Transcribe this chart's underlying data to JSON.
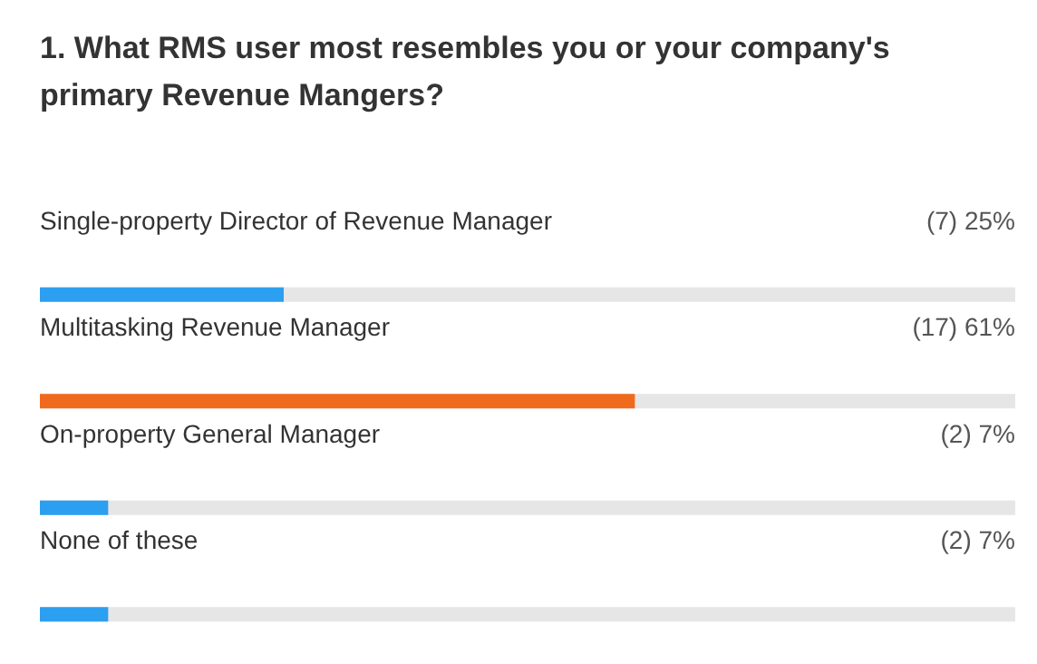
{
  "chart_data": {
    "type": "bar",
    "orientation": "horizontal",
    "title": "1. What RMS user most resembles you or your company's primary Revenue Mangers?",
    "categories": [
      "Single-property Director of Revenue Manager",
      "Multitasking Revenue Manager",
      "On-property General Manager",
      "None of these"
    ],
    "values": [
      25,
      61,
      7,
      7
    ],
    "colors": [
      "#2c9ff0",
      "#f06a1e",
      "#2c9ff0",
      "#2c9ff0"
    ],
    "value_labels": [
      "(7) 25%",
      "(17) 61%",
      "(2) 7%",
      "(2) 7%"
    ],
    "xlim": [
      0,
      100
    ]
  }
}
